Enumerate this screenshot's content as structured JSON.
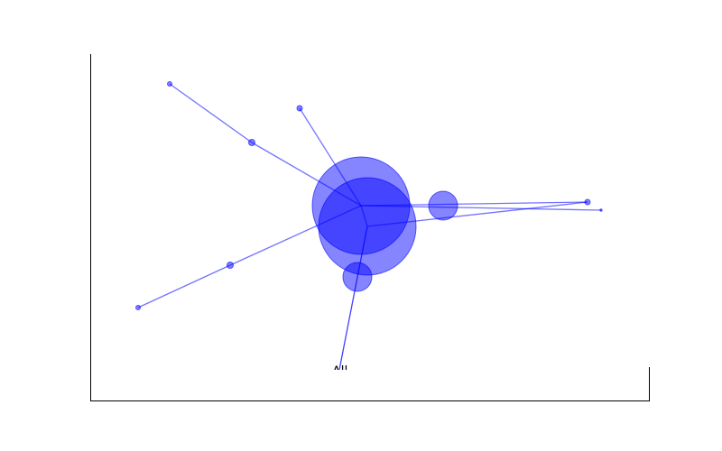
{
  "diagram": {
    "type": "network-graph",
    "label_text": "All",
    "colors": {
      "node_fill": "#0000ff",
      "node_stroke": "#0000ff",
      "edge": "#0000ff",
      "axes": "#000000"
    }
  }
}
